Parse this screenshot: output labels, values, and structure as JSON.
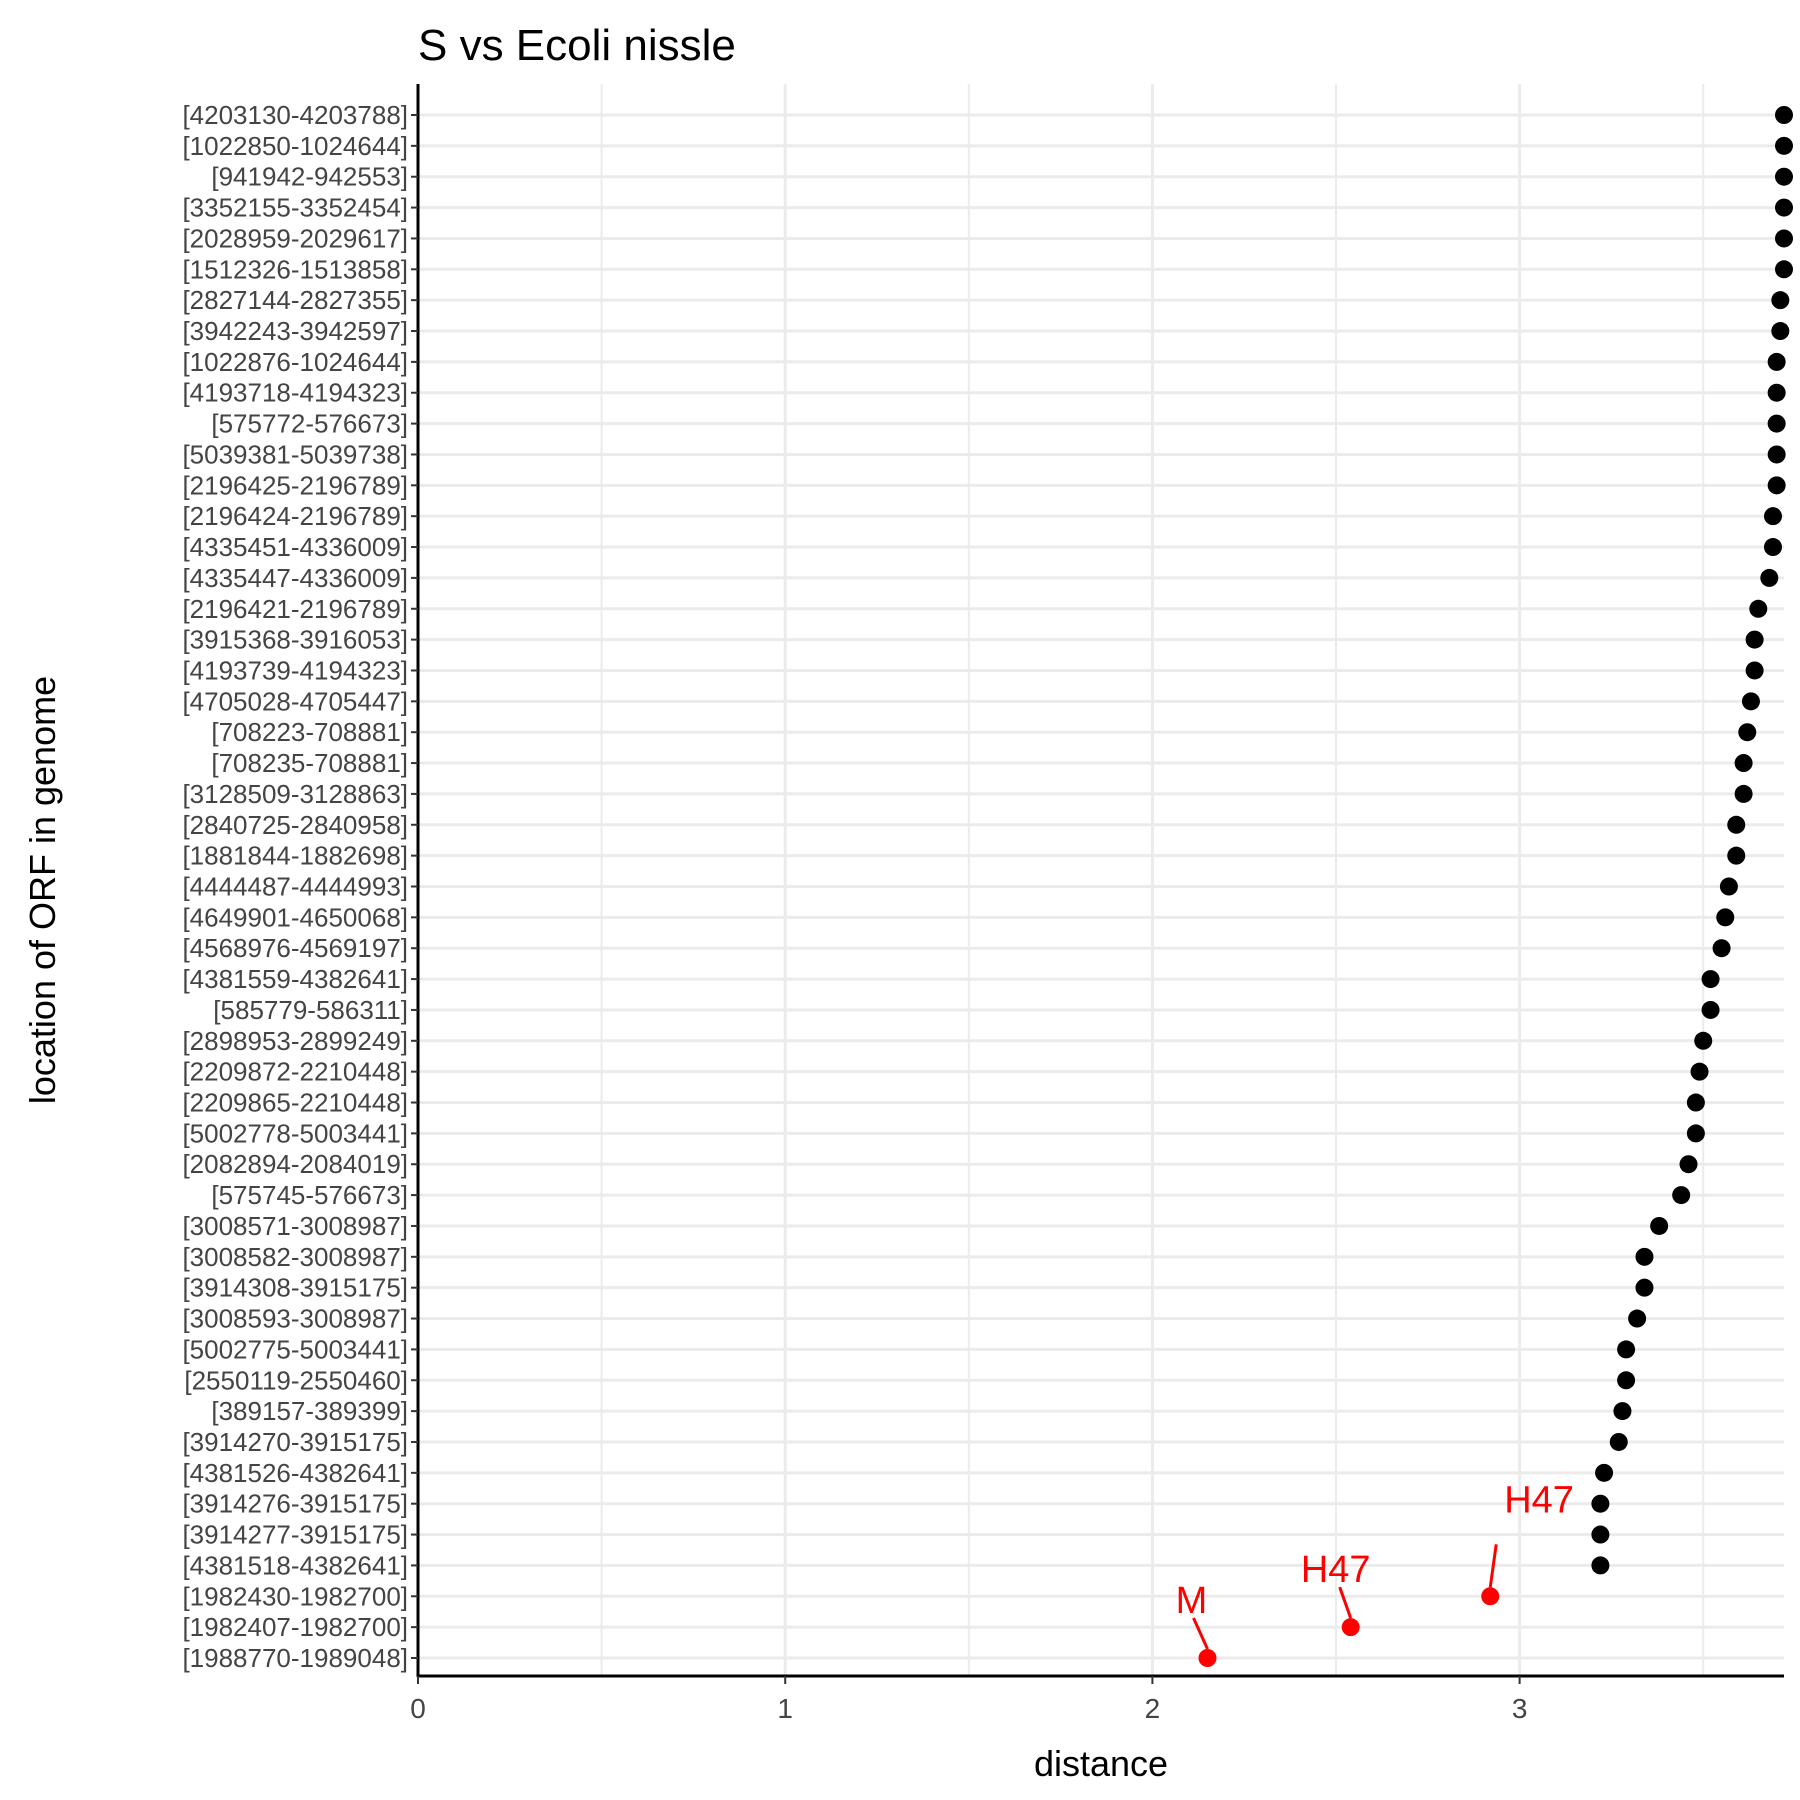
{
  "chart_data": {
    "type": "scatter",
    "title": "S vs Ecoli nissle",
    "xlabel": "distance",
    "ylabel": "location of ORF in genome",
    "xlim": [
      0,
      3.72
    ],
    "x_ticks": [
      0,
      1,
      2,
      3
    ],
    "grid": true,
    "legend": "none",
    "colors": {
      "point": "#000000",
      "highlight": "#ff0000",
      "grid": "#ebebeb",
      "axis": "#000000"
    },
    "categories": [
      "[4203130-4203788]",
      "[1022850-1024644]",
      "[941942-942553]",
      "[3352155-3352454]",
      "[2028959-2029617]",
      "[1512326-1513858]",
      "[2827144-2827355]",
      "[3942243-3942597]",
      "[1022876-1024644]",
      "[4193718-4194323]",
      "[575772-576673]",
      "[5039381-5039738]",
      "[2196425-2196789]",
      "[2196424-2196789]",
      "[4335451-4336009]",
      "[4335447-4336009]",
      "[2196421-2196789]",
      "[3915368-3916053]",
      "[4193739-4194323]",
      "[4705028-4705447]",
      "[708223-708881]",
      "[708235-708881]",
      "[3128509-3128863]",
      "[2840725-2840958]",
      "[1881844-1882698]",
      "[4444487-4444993]",
      "[4649901-4650068]",
      "[4568976-4569197]",
      "[4381559-4382641]",
      "[585779-586311]",
      "[2898953-2899249]",
      "[2209872-2210448]",
      "[2209865-2210448]",
      "[5002778-5003441]",
      "[2082894-2084019]",
      "[575745-576673]",
      "[3008571-3008987]",
      "[3008582-3008987]",
      "[3914308-3915175]",
      "[3008593-3008987]",
      "[5002775-5003441]",
      "[2550119-2550460]",
      "[389157-389399]",
      "[3914270-3915175]",
      "[4381526-4382641]",
      "[3914276-3915175]",
      "[3914277-3915175]",
      "[4381518-4382641]",
      "[1982430-1982700]",
      "[1982407-1982700]",
      "[1988770-1989048]"
    ],
    "values": [
      3.72,
      3.72,
      3.72,
      3.72,
      3.72,
      3.72,
      3.71,
      3.71,
      3.7,
      3.7,
      3.7,
      3.7,
      3.7,
      3.69,
      3.69,
      3.68,
      3.65,
      3.64,
      3.64,
      3.63,
      3.62,
      3.61,
      3.61,
      3.59,
      3.59,
      3.57,
      3.56,
      3.55,
      3.52,
      3.52,
      3.5,
      3.49,
      3.48,
      3.48,
      3.46,
      3.44,
      3.38,
      3.34,
      3.34,
      3.32,
      3.29,
      3.29,
      3.28,
      3.27,
      3.23,
      3.22,
      3.22,
      3.22,
      2.92,
      2.54,
      2.15
    ],
    "highlight": [
      48,
      49,
      50
    ],
    "annotations": [
      {
        "text": "H47",
        "index": 48
      },
      {
        "text": "H47",
        "index": 49
      },
      {
        "text": "M",
        "index": 50
      }
    ]
  }
}
